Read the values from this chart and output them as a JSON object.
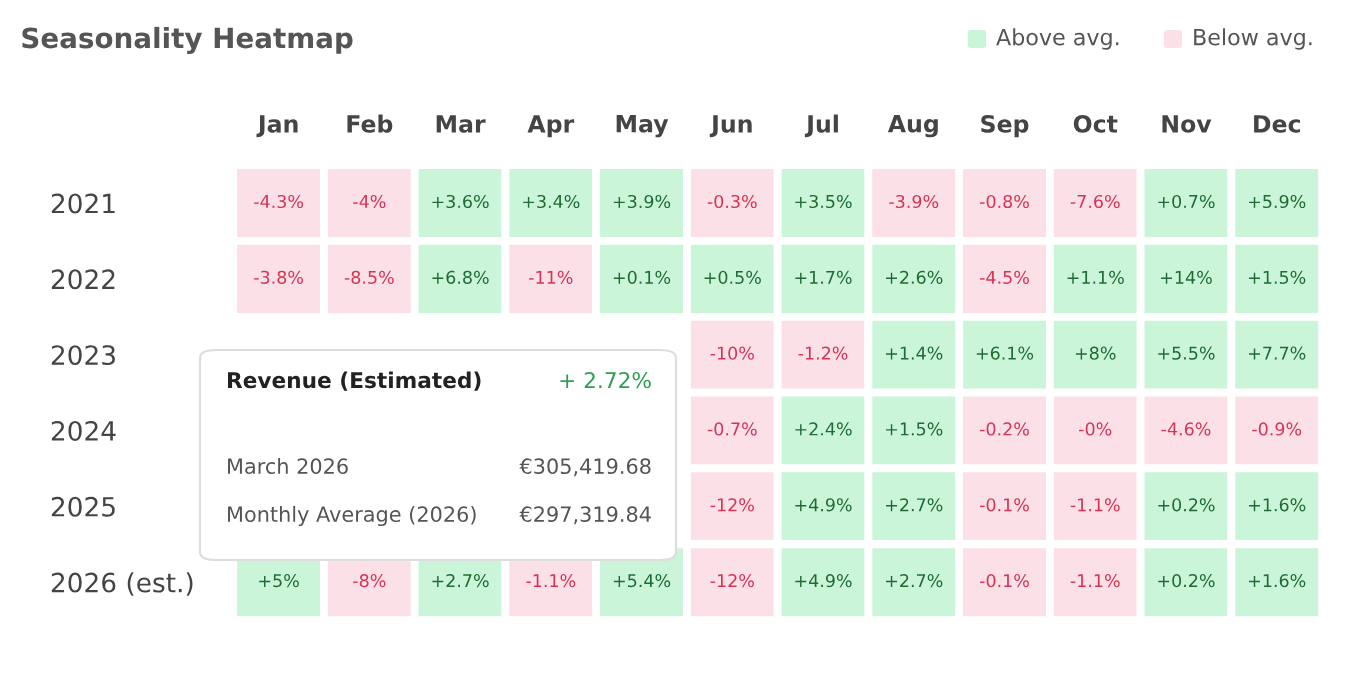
{
  "chart_data": {
    "type": "heatmap",
    "title": "Seasonality Heatmap",
    "categories": [
      "Jan",
      "Feb",
      "Mar",
      "Apr",
      "May",
      "Jun",
      "Jul",
      "Aug",
      "Sep",
      "Oct",
      "Nov",
      "Dec"
    ],
    "y_categories": [
      "2021",
      "2022",
      "2023",
      "2024",
      "2025",
      "2026 (est.)"
    ],
    "cells": [
      [
        -4.3,
        -4,
        3.6,
        3.4,
        3.9,
        -0.3,
        3.5,
        -3.9,
        -0.8,
        -7.6,
        0.7,
        5.9
      ],
      [
        -3.8,
        -8.5,
        6.8,
        -11,
        0.1,
        0.5,
        1.7,
        2.6,
        -4.5,
        1.1,
        14,
        1.5
      ],
      [
        null,
        null,
        null,
        null,
        null,
        -10,
        -1.2,
        1.4,
        6.1,
        8,
        5.5,
        7.7
      ],
      [
        null,
        null,
        null,
        null,
        null,
        -0.7,
        2.4,
        1.5,
        -0.2,
        -0.0,
        -4.6,
        -0.9
      ],
      [
        null,
        null,
        null,
        null,
        null,
        -12,
        4.9,
        2.7,
        -0.1,
        -1.1,
        0.2,
        1.6
      ],
      [
        5,
        -8,
        2.7,
        -1.1,
        5.4,
        -12,
        4.9,
        2.7,
        -0.1,
        -1.1,
        0.2,
        1.6
      ]
    ],
    "cell_labels": [
      [
        "-4.3%",
        "-4%",
        "+3.6%",
        "+3.4%",
        "+3.9%",
        "-0.3%",
        "+3.5%",
        "-3.9%",
        "-0.8%",
        "-7.6%",
        "+0.7%",
        "+5.9%"
      ],
      [
        "-3.8%",
        "-8.5%",
        "+6.8%",
        "-11%",
        "+0.1%",
        "+0.5%",
        "+1.7%",
        "+2.6%",
        "-4.5%",
        "+1.1%",
        "+14%",
        "+1.5%"
      ],
      [
        null,
        null,
        null,
        null,
        null,
        "-10%",
        "-1.2%",
        "+1.4%",
        "+6.1%",
        "+8%",
        "+5.5%",
        "+7.7%"
      ],
      [
        null,
        null,
        null,
        null,
        null,
        "-0.7%",
        "+2.4%",
        "+1.5%",
        "-0.2%",
        "-0%",
        "-4.6%",
        "-0.9%"
      ],
      [
        null,
        null,
        null,
        null,
        null,
        "-12%",
        "+4.9%",
        "+2.7%",
        "-0.1%",
        "-1.1%",
        "+0.2%",
        "+1.6%"
      ],
      [
        "+5%",
        "-8%",
        "+2.7%",
        "-1.1%",
        "+5.4%",
        "-12%",
        "+4.9%",
        "+2.7%",
        "-0.1%",
        "-1.1%",
        "+0.2%",
        "+1.6%"
      ]
    ],
    "colors": [
      "#cbf5d8",
      "#fbe1e7"
    ],
    "annotations": [
      "Above avg.",
      "Below avg.",
      "Revenue (Estimated)",
      "+ 2.72%",
      "March 2026",
      "€305,419.68",
      "Monthly Average (2026)",
      "€297,319.84"
    ]
  }
}
